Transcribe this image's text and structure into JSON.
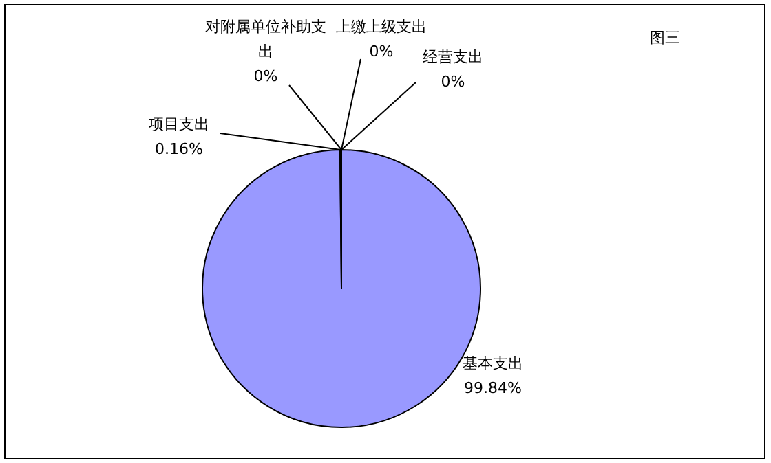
{
  "chart_data": {
    "type": "pie",
    "title": "图三",
    "categories": [
      "基本支出",
      "项目支出",
      "对附属单位补助支出",
      "上缴上级支出",
      "经营支出"
    ],
    "values": [
      99.84,
      0.16,
      0,
      0,
      0
    ],
    "value_labels": [
      "99.84%",
      "0.16%",
      "0%",
      "0%",
      "0%"
    ],
    "colors": [
      "#9999ff",
      "#993366",
      "#ffffcc",
      "#ccffff",
      "#660066"
    ]
  }
}
